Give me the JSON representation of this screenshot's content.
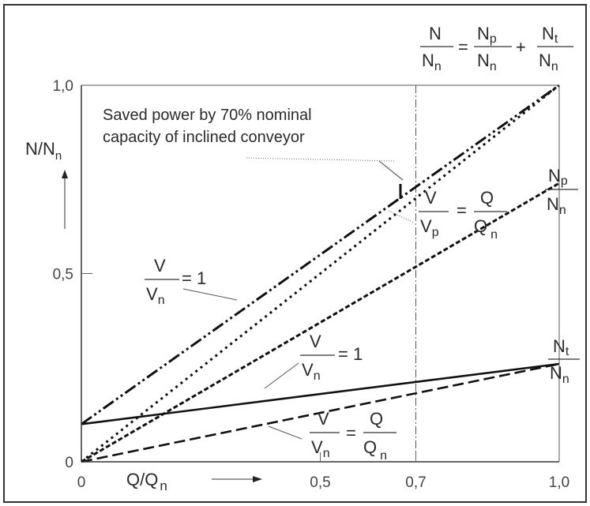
{
  "chart_data": {
    "type": "line",
    "x": [
      0,
      1.0
    ],
    "xlim": [
      0,
      1.0
    ],
    "ylim": [
      0,
      1.0
    ],
    "xticks": [
      "0",
      "0,5",
      "0,7",
      "1,0"
    ],
    "yticks": [
      "0",
      "0,5",
      "1,0"
    ],
    "xlabel": {
      "main": "Q/Q",
      "sub": "n"
    },
    "ylabel": {
      "main": "N/N",
      "sub": "n"
    },
    "grid": false,
    "series": [
      {
        "key": "total_const_speed",
        "style": "dash-dot-dot",
        "x": [
          0,
          1.0
        ],
        "y": [
          0.1,
          1.0
        ]
      },
      {
        "key": "total_var_speed",
        "style": "dotted",
        "x": [
          0,
          1.0
        ],
        "y": [
          0.0,
          1.0
        ]
      },
      {
        "key": "np_var_speed",
        "style": "dashed-fine",
        "x": [
          0,
          1.0
        ],
        "y": [
          0.0,
          0.74
        ]
      },
      {
        "key": "nt_const_speed",
        "style": "solid",
        "x": [
          0,
          1.0
        ],
        "y": [
          0.1,
          0.26
        ]
      },
      {
        "key": "nt_var_speed",
        "style": "dashed",
        "x": [
          0,
          1.0
        ],
        "y": [
          0.0,
          0.26
        ]
      }
    ],
    "annotations": {
      "reference_x": 0.7,
      "saved_power_line1": "Saved power by 70% nominal",
      "saved_power_line2": "capacity of inclined conveyor",
      "equation": {
        "lhs_num": "N",
        "lhs_den_main": "N",
        "lhs_den_sub": "n",
        "eq": "=",
        "t1_num_main": "N",
        "t1_num_sub": "p",
        "t1_den_main": "N",
        "t1_den_sub": "n",
        "plus": "+",
        "t2_num_main": "N",
        "t2_num_sub": "t",
        "t2_den_main": "N",
        "t2_den_sub": "n"
      },
      "np_label": {
        "num_main": "N",
        "num_sub": "p",
        "den_main": "N",
        "den_sub": "n"
      },
      "nt_label": {
        "num_main": "N",
        "num_sub": "t",
        "den_main": "N",
        "den_sub": "n"
      },
      "v_vp_q_qn": {
        "v": "V",
        "vp_main": "V",
        "vp_sub": "p",
        "eq": "=",
        "q": "Q",
        "qn_main": "Q",
        "qn_sub": "n"
      },
      "v_vn_1_upper": {
        "v": "V",
        "vn_main": "V",
        "vn_sub": "n",
        "eq": "= 1"
      },
      "v_vn_1_lower": {
        "v": "V",
        "vn_main": "V",
        "vn_sub": "n",
        "eq": "= 1"
      },
      "v_vn_q_qn": {
        "v": "V",
        "vn_main": "V",
        "vn_sub": "n",
        "eq": "=",
        "q": "Q",
        "qn_main": "Q",
        "qn_sub": "n"
      }
    }
  }
}
